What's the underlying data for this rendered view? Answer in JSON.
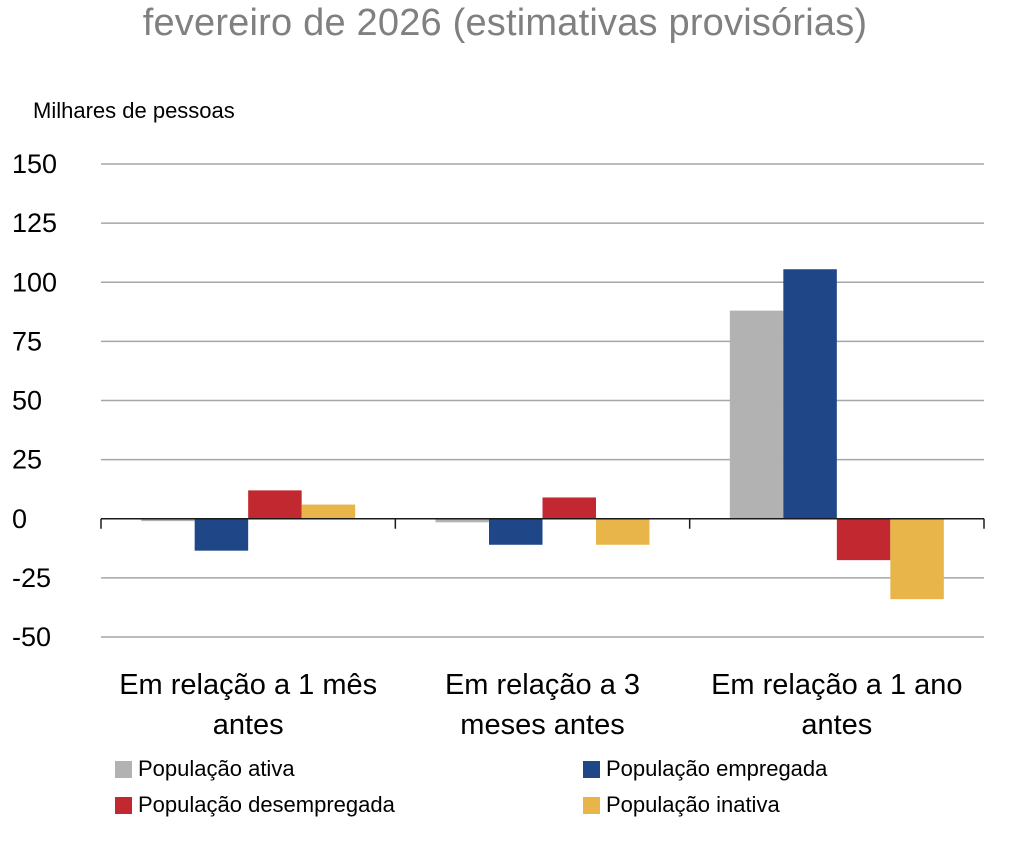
{
  "chart_data": {
    "type": "bar",
    "title": "fevereiro de 2026 (estimativas provisórias)",
    "ylabel": "Milhares de pessoas",
    "xlabel": "",
    "ylim": [
      -50,
      150
    ],
    "yticks": [
      150,
      125,
      100,
      75,
      50,
      25,
      0,
      -25,
      -50
    ],
    "grid": true,
    "legend_position": "bottom",
    "categories": [
      [
        "Em relação a 1 mês",
        "antes"
      ],
      [
        "Em relação a 3",
        "meses antes"
      ],
      [
        "Em relação a 1 ano",
        "antes"
      ]
    ],
    "series": [
      {
        "name": "População ativa",
        "color": "#b2b2b2",
        "values": [
          -1,
          -1.5,
          88
        ]
      },
      {
        "name": "População empregada",
        "color": "#1f4788",
        "values": [
          -13.5,
          -11,
          105.5
        ]
      },
      {
        "name": "População desempregada",
        "color": "#c1282f",
        "values": [
          12,
          9,
          -17.5
        ]
      },
      {
        "name": "População inativa",
        "color": "#e8b54a",
        "values": [
          6,
          -11,
          -34
        ]
      }
    ]
  }
}
